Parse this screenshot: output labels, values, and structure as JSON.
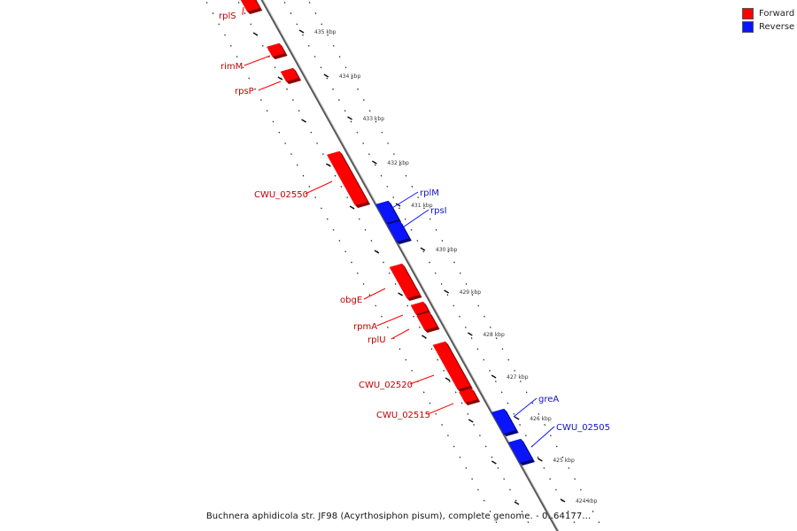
{
  "legend": {
    "forward_label": "Forward",
    "reverse_label": "Reverse",
    "forward_color": "#ff0000",
    "reverse_color": "#0a14ff"
  },
  "caption": "Buchnera aphidicola str. JF98 (Acyrthosiphon pisum), complete genome. - 0..64177...",
  "ticks": [
    {
      "label": "435 kbp"
    },
    {
      "label": "434 kbp"
    },
    {
      "label": "433 kbp"
    },
    {
      "label": "432 kbp"
    },
    {
      "label": "431 kbp"
    },
    {
      "label": "430 kbp"
    },
    {
      "label": "429 kbp"
    },
    {
      "label": "428 kbp"
    },
    {
      "label": "427 kbp"
    },
    {
      "label": "426 kbp"
    },
    {
      "label": "425 kbp"
    },
    {
      "label": "424 kbp"
    }
  ],
  "genes": [
    {
      "name": "rplS",
      "strand": "forward"
    },
    {
      "name": "rimM",
      "strand": "forward"
    },
    {
      "name": "rpsP",
      "strand": "forward"
    },
    {
      "name": "CWU_02550",
      "strand": "forward"
    },
    {
      "name": "rplM",
      "strand": "reverse"
    },
    {
      "name": "rpsI",
      "strand": "reverse"
    },
    {
      "name": "obgE",
      "strand": "forward"
    },
    {
      "name": "rpmA",
      "strand": "forward"
    },
    {
      "name": "rplU",
      "strand": "forward"
    },
    {
      "name": "CWU_02520",
      "strand": "forward"
    },
    {
      "name": "CWU_02515",
      "strand": "forward"
    },
    {
      "name": "greA",
      "strand": "reverse"
    },
    {
      "name": "CWU_02505",
      "strand": "reverse"
    }
  ]
}
